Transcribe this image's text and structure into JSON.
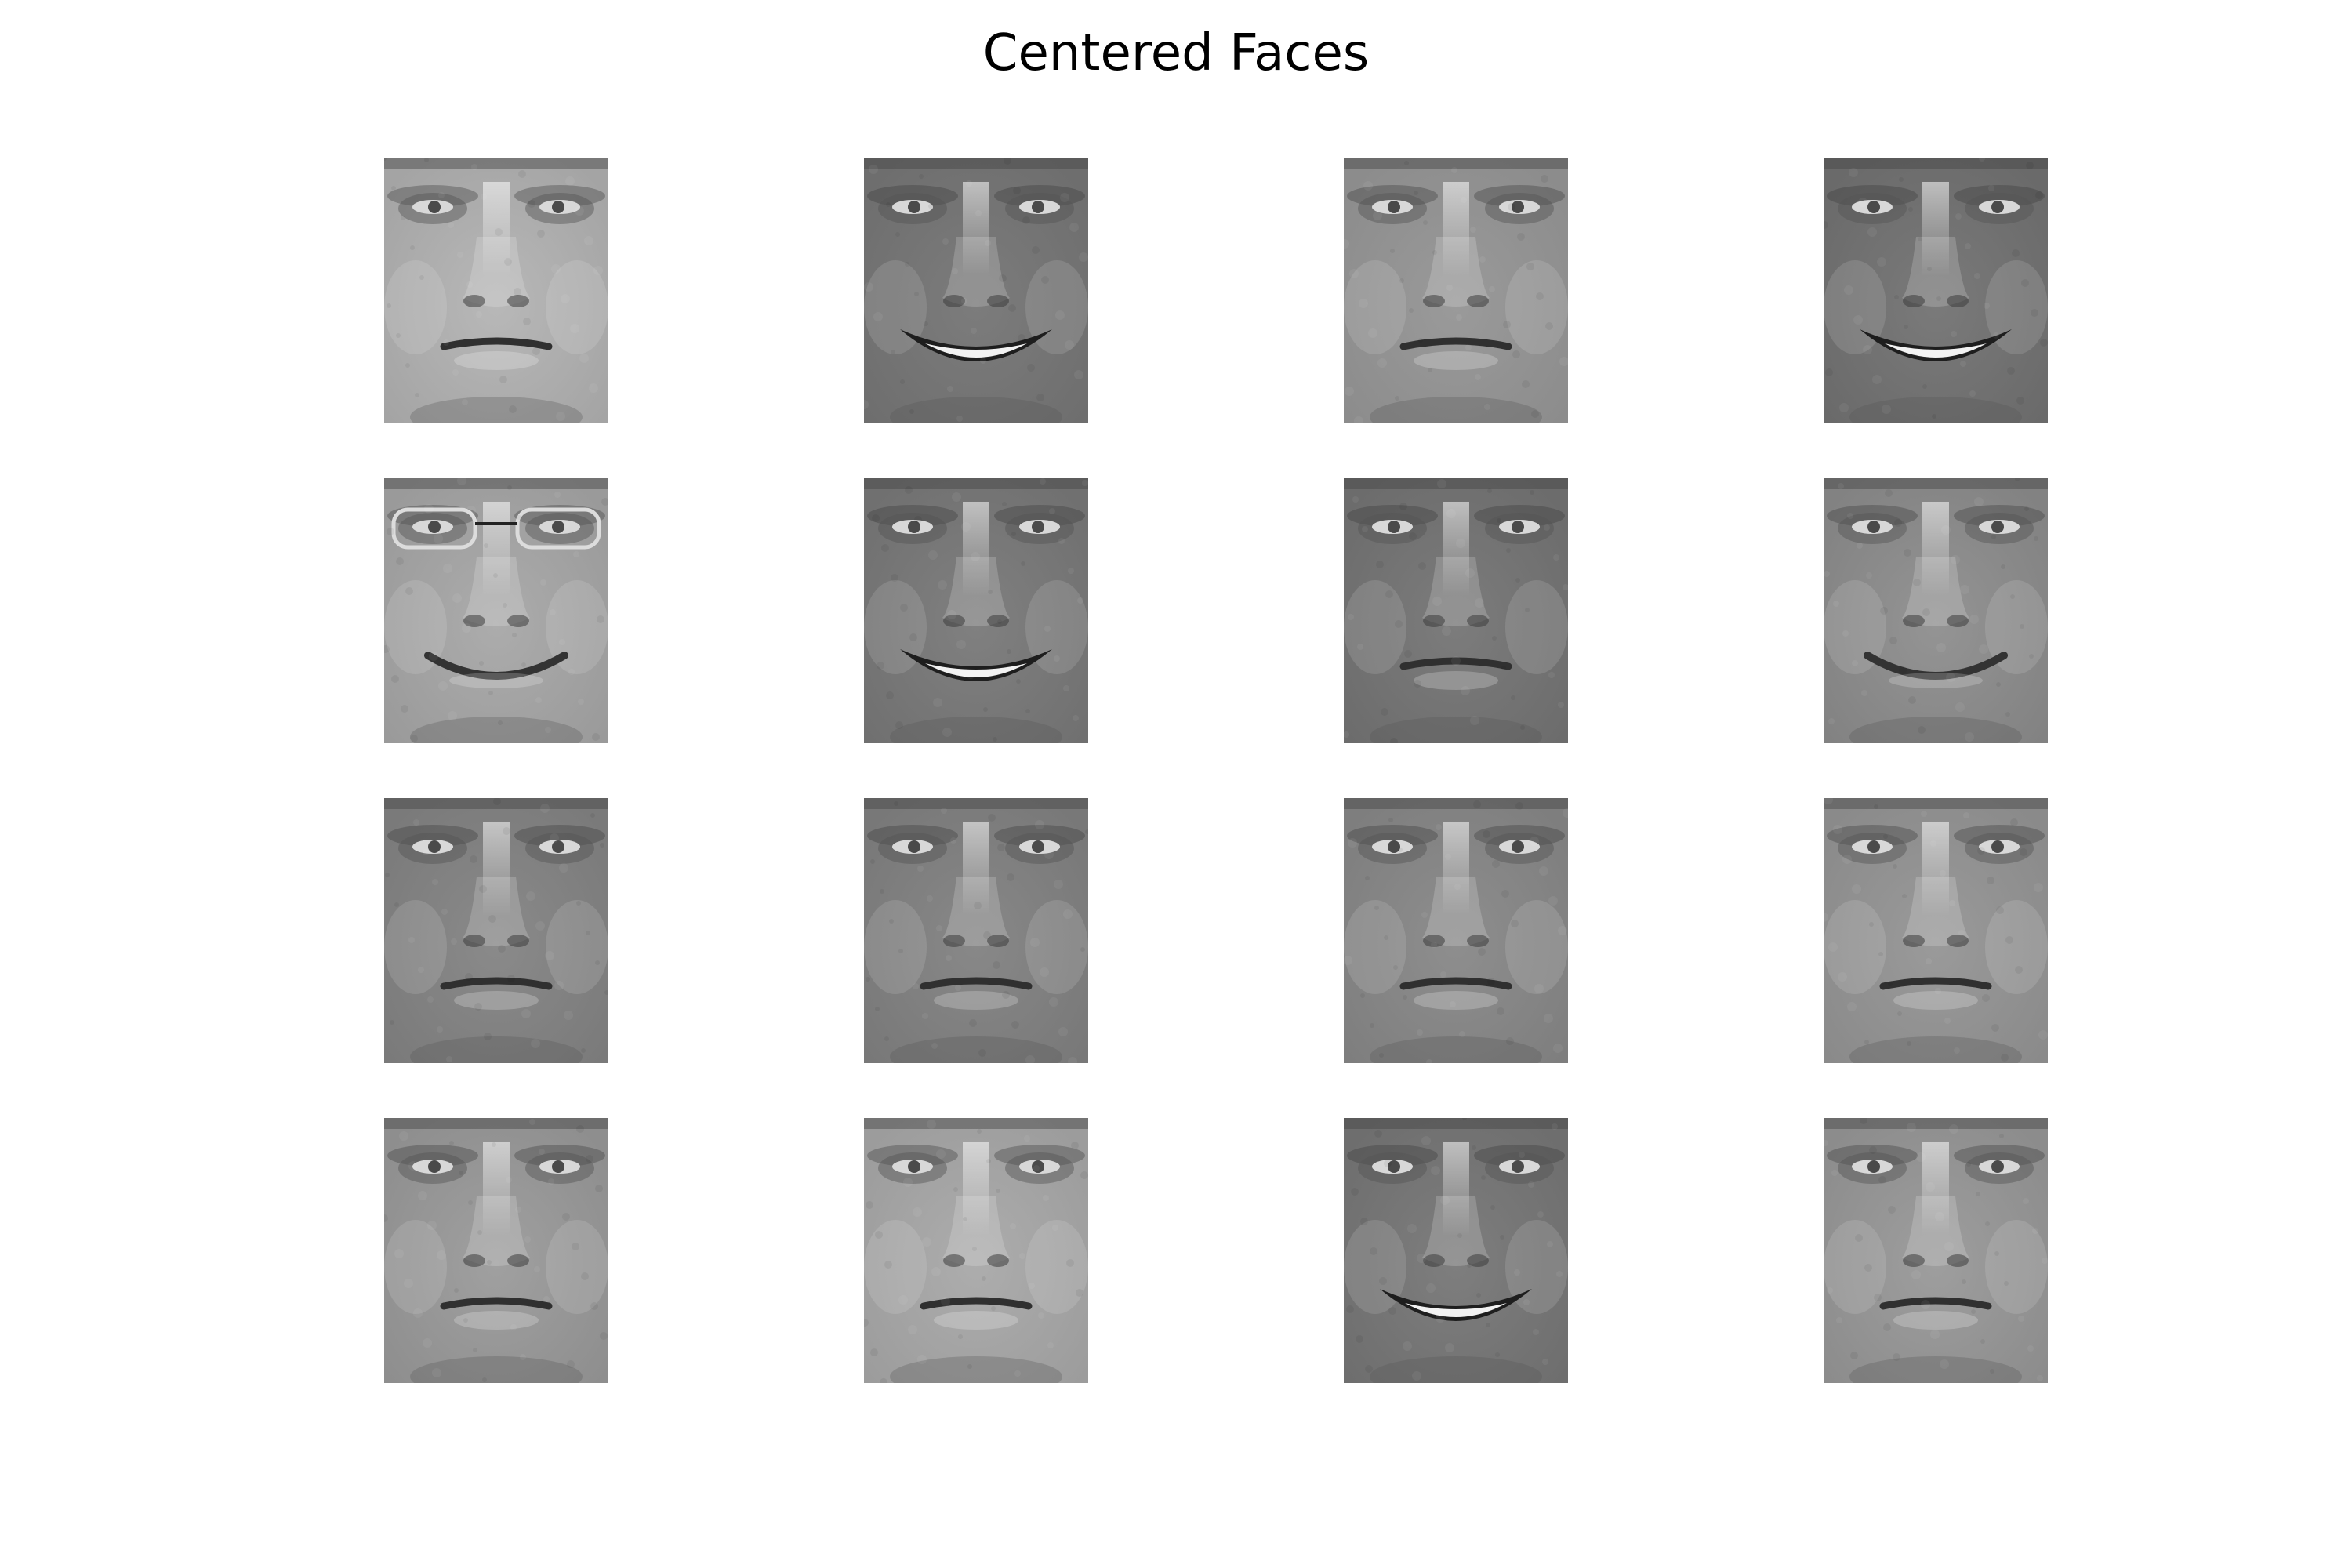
{
  "figure": {
    "title": "Centered Faces"
  },
  "faces": [
    {
      "row": 0,
      "col": 0,
      "tone": "#a4a4a4",
      "skin": "#b8b8b8",
      "expression": "neutral",
      "glasses": false
    },
    {
      "row": 0,
      "col": 1,
      "tone": "#6e6e6e",
      "skin": "#7c7c7c",
      "expression": "smile-teeth",
      "glasses": false
    },
    {
      "row": 0,
      "col": 2,
      "tone": "#8c8c8c",
      "skin": "#9a9a9a",
      "expression": "neutral",
      "glasses": false
    },
    {
      "row": 0,
      "col": 3,
      "tone": "#6a6a6a",
      "skin": "#7a7a7a",
      "expression": "smile-teeth",
      "glasses": false
    },
    {
      "row": 1,
      "col": 0,
      "tone": "#9a9a9a",
      "skin": "#acacac",
      "expression": "smile",
      "glasses": true
    },
    {
      "row": 1,
      "col": 1,
      "tone": "#707070",
      "skin": "#808080",
      "expression": "smile-teeth",
      "glasses": false
    },
    {
      "row": 1,
      "col": 2,
      "tone": "#6c6c6c",
      "skin": "#7c7c7c",
      "expression": "neutral",
      "glasses": false
    },
    {
      "row": 1,
      "col": 3,
      "tone": "#828282",
      "skin": "#949494",
      "expression": "smile",
      "glasses": false
    },
    {
      "row": 2,
      "col": 0,
      "tone": "#7a7a7a",
      "skin": "#8a8a8a",
      "expression": "neutral",
      "glasses": false
    },
    {
      "row": 2,
      "col": 1,
      "tone": "#787878",
      "skin": "#888888",
      "expression": "neutral",
      "glasses": false
    },
    {
      "row": 2,
      "col": 2,
      "tone": "#7e7e7e",
      "skin": "#8e8e8e",
      "expression": "neutral",
      "glasses": false
    },
    {
      "row": 2,
      "col": 3,
      "tone": "#8a8a8a",
      "skin": "#9a9a9a",
      "expression": "neutral",
      "glasses": false
    },
    {
      "row": 3,
      "col": 0,
      "tone": "#8e8e8e",
      "skin": "#a0a0a0",
      "expression": "neutral",
      "glasses": false
    },
    {
      "row": 3,
      "col": 1,
      "tone": "#9c9c9c",
      "skin": "#adadad",
      "expression": "neutral",
      "glasses": false
    },
    {
      "row": 3,
      "col": 2,
      "tone": "#6e6e6e",
      "skin": "#7e7e7e",
      "expression": "smile-teeth",
      "glasses": false
    },
    {
      "row": 3,
      "col": 3,
      "tone": "#8c8c8c",
      "skin": "#9e9e9e",
      "expression": "neutral",
      "glasses": false
    }
  ]
}
